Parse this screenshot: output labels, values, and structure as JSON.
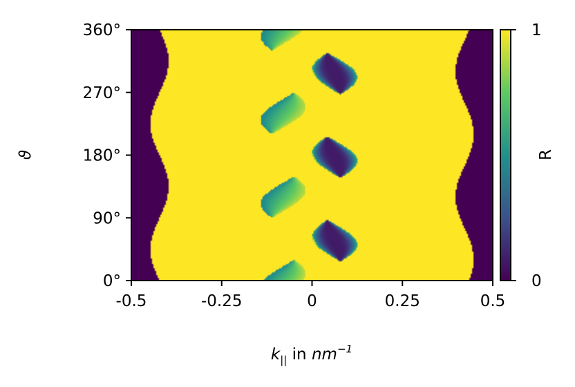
{
  "chart_data": {
    "type": "heatmap",
    "title": "",
    "xlabel": {
      "main": "k",
      "subscript": "||",
      "middle": " in ",
      "unit": "nm",
      "superscript": "−1"
    },
    "ylabel": "ϑ",
    "xlim": [
      -0.5,
      0.5
    ],
    "ylim": [
      0,
      360
    ],
    "x_ticks": [
      {
        "value": -0.5,
        "label": "-0.5"
      },
      {
        "value": -0.25,
        "label": "-0.25"
      },
      {
        "value": 0,
        "label": "0"
      },
      {
        "value": 0.25,
        "label": "0.25"
      },
      {
        "value": 0.5,
        "label": "0.5"
      }
    ],
    "y_ticks": [
      {
        "value": 0,
        "label": "0°"
      },
      {
        "value": 90,
        "label": "90°"
      },
      {
        "value": 180,
        "label": "180°"
      },
      {
        "value": 270,
        "label": "270°"
      },
      {
        "value": 360,
        "label": "360°"
      }
    ],
    "colorbar": {
      "label": "R",
      "range": [
        0,
        1
      ],
      "ticks": [
        {
          "value": 0,
          "label": "0"
        },
        {
          "value": 1,
          "label": "1"
        }
      ],
      "colormap": "viridis",
      "colormap_stops": [
        "#440154",
        "#3b528b",
        "#21918c",
        "#5ec962",
        "#fde725"
      ]
    },
    "regions": {
      "left_dark_edge": {
        "base_x": -0.42,
        "amplitude_x": 0.025,
        "period_deg": 180,
        "peak_at_deg": [
          90,
          270
        ]
      },
      "right_dark_edge": {
        "base_x": 0.42,
        "amplitude_x": 0.025,
        "period_deg": 180
      },
      "central_band": {
        "x_range": [
          -0.12,
          0.12
        ],
        "period_deg": 180,
        "dark_lobes_centered_deg": [
          30,
          90,
          150,
          210,
          270,
          330
        ]
      }
    }
  }
}
